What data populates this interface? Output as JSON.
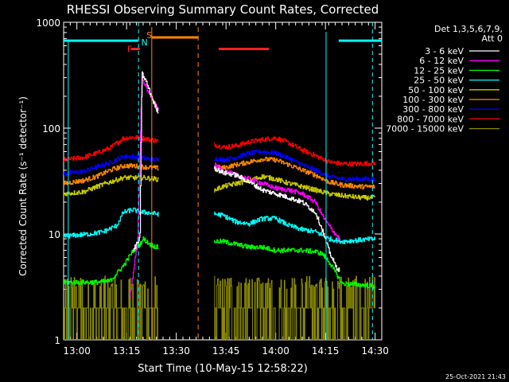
{
  "chart_data": {
    "type": "line",
    "title": "RHESSI Observing Summary Count Rates, Corrected",
    "xlabel": "Start Time (10-May-15 12:58:22)",
    "ylabel": "Corrected Count Rate (s⁻¹ detector⁻¹)",
    "yscale": "log",
    "xlim_minutes": [
      -2,
      46
    ],
    "ylim": [
      1,
      1000
    ],
    "x_ticks": [
      {
        "m": 0,
        "label": "13:00"
      },
      {
        "m": 7.5,
        "label": "13:15"
      },
      {
        "m": 15,
        "label": "13:30"
      },
      {
        "m": 22.5,
        "label": "13:45"
      },
      {
        "m": 30,
        "label": "14:00"
      },
      {
        "m": 37.5,
        "label": "14:15"
      },
      {
        "m": 45,
        "label": "14:30"
      }
    ],
    "y_ticks": [
      {
        "v": 1,
        "label": "1"
      },
      {
        "v": 10,
        "label": "10"
      },
      {
        "v": 100,
        "label": "100"
      },
      {
        "v": 1000,
        "label": "1000"
      }
    ],
    "legend_header": [
      "Det 1,3,5,6,7,9,",
      "Att 0"
    ],
    "timestamp": "25-Oct-2021 21:43",
    "markers": {
      "F": {
        "label": "F",
        "color": "#ff2020",
        "bars": [
          [
            8.2,
            9.5
          ],
          [
            21.4,
            29.0
          ]
        ]
      },
      "N": {
        "label": "N",
        "color": "#00ffff",
        "dashed": [
          9.3,
          44.6
        ],
        "solid": [
          -2,
          9.3,
          39.5,
          46
        ],
        "ybar": 670,
        "edges": [
          9.3,
          37.6
        ]
      },
      "S": {
        "label": "S",
        "color": "#ff8800",
        "solid": [
          11.3,
          18.3
        ],
        "edges": [
          11.3,
          18.3
        ],
        "ybar": 720
      }
    },
    "segments": [
      [
        -2,
        12.3
      ],
      [
        20.7,
        45.0
      ]
    ],
    "series": [
      {
        "name": "3 - 6 keV",
        "color": "#ffffff",
        "pts": [
          [
            8.5,
            7
          ],
          [
            9.0,
            8
          ],
          [
            9.5,
            9
          ],
          [
            9.8,
            330
          ],
          [
            10.5,
            270
          ],
          [
            11.0,
            220
          ],
          [
            11.5,
            180
          ],
          [
            12.0,
            150
          ],
          [
            20.7,
            42
          ],
          [
            22,
            38
          ],
          [
            24,
            36
          ],
          [
            26,
            31
          ],
          [
            28,
            26
          ],
          [
            30,
            24
          ],
          [
            32,
            22
          ],
          [
            34,
            20
          ],
          [
            36,
            16
          ],
          [
            37,
            11
          ],
          [
            38,
            7
          ],
          [
            39,
            5
          ],
          [
            39.6,
            4.5
          ]
        ]
      },
      {
        "name": "6 - 12 keV",
        "color": "#ff00ff",
        "pts": [
          [
            8.0,
            2.5
          ],
          [
            9.2,
            9.5
          ],
          [
            9.8,
            300
          ],
          [
            10.5,
            240
          ],
          [
            11.5,
            180
          ],
          [
            12.0,
            160
          ],
          [
            20.7,
            45
          ],
          [
            22,
            40
          ],
          [
            24,
            36
          ],
          [
            26,
            33
          ],
          [
            28,
            30
          ],
          [
            30,
            27
          ],
          [
            32,
            26
          ],
          [
            34,
            24
          ],
          [
            36,
            20
          ],
          [
            37,
            15
          ],
          [
            38,
            12
          ],
          [
            39,
            10
          ],
          [
            39.6,
            9
          ]
        ]
      },
      {
        "name": "12 - 25 keV",
        "color": "#00ff00",
        "pts": [
          [
            -2,
            3.5
          ],
          [
            1,
            3.5
          ],
          [
            3,
            3.5
          ],
          [
            5,
            3.6
          ],
          [
            7,
            5
          ],
          [
            8.5,
            7
          ],
          [
            9.5,
            8
          ],
          [
            10,
            9
          ],
          [
            11,
            8
          ],
          [
            12,
            7.5
          ],
          [
            20.7,
            8.5
          ],
          [
            22,
            8.5
          ],
          [
            24,
            8
          ],
          [
            26,
            7.5
          ],
          [
            28,
            7.5
          ],
          [
            30,
            7
          ],
          [
            32,
            7
          ],
          [
            34,
            7
          ],
          [
            36,
            6.8
          ],
          [
            37,
            6.5
          ],
          [
            38,
            5.5
          ],
          [
            40,
            3.4
          ],
          [
            43,
            3.3
          ],
          [
            45,
            3.2
          ]
        ]
      },
      {
        "name": "25 - 50 keV",
        "color": "#00ffff",
        "pts": [
          [
            -2,
            9.5
          ],
          [
            2,
            10
          ],
          [
            4,
            10.5
          ],
          [
            6,
            12
          ],
          [
            7,
            16
          ],
          [
            8.5,
            17
          ],
          [
            9.5,
            16
          ],
          [
            10.5,
            16
          ],
          [
            12,
            15.5
          ],
          [
            20.7,
            15.5
          ],
          [
            22,
            15
          ],
          [
            24,
            13
          ],
          [
            26,
            12.5
          ],
          [
            28,
            14
          ],
          [
            30,
            14
          ],
          [
            32,
            12
          ],
          [
            34,
            11
          ],
          [
            36,
            10.5
          ],
          [
            38,
            9
          ],
          [
            40,
            8.5
          ],
          [
            43,
            8.8
          ],
          [
            45,
            9
          ]
        ]
      },
      {
        "name": "50 - 100 keV",
        "color": "#cccc00",
        "pts": [
          [
            -2,
            24
          ],
          [
            1,
            25
          ],
          [
            3,
            28
          ],
          [
            5,
            31
          ],
          [
            7,
            34
          ],
          [
            8.5,
            34
          ],
          [
            10,
            34
          ],
          [
            12,
            33
          ],
          [
            20.7,
            26
          ],
          [
            22,
            28
          ],
          [
            24,
            30
          ],
          [
            26,
            32
          ],
          [
            28,
            35
          ],
          [
            30,
            33
          ],
          [
            32,
            30
          ],
          [
            34,
            28
          ],
          [
            36,
            26
          ],
          [
            38,
            24
          ],
          [
            40,
            23
          ],
          [
            43,
            22
          ],
          [
            45,
            22
          ]
        ]
      },
      {
        "name": "100 - 300 keV",
        "color": "#ff8800",
        "pts": [
          [
            -2,
            30
          ],
          [
            1,
            32
          ],
          [
            3,
            35
          ],
          [
            5,
            40
          ],
          [
            7,
            44
          ],
          [
            8.5,
            44
          ],
          [
            10,
            43
          ],
          [
            12,
            42
          ],
          [
            20.7,
            43
          ],
          [
            22,
            42
          ],
          [
            24,
            45
          ],
          [
            26,
            48
          ],
          [
            28,
            51
          ],
          [
            30,
            50
          ],
          [
            32,
            45
          ],
          [
            34,
            40
          ],
          [
            36,
            36
          ],
          [
            38,
            31
          ],
          [
            40,
            29
          ],
          [
            43,
            28
          ],
          [
            45,
            28
          ]
        ]
      },
      {
        "name": "300 - 800 keV",
        "color": "#0000ff",
        "pts": [
          [
            -2,
            37
          ],
          [
            1,
            39
          ],
          [
            3,
            43
          ],
          [
            5,
            47
          ],
          [
            7,
            54
          ],
          [
            8.5,
            54
          ],
          [
            10,
            52
          ],
          [
            12,
            50
          ],
          [
            20.7,
            52
          ],
          [
            22,
            50
          ],
          [
            24,
            53
          ],
          [
            26,
            58
          ],
          [
            28,
            60
          ],
          [
            30,
            58
          ],
          [
            32,
            52
          ],
          [
            34,
            45
          ],
          [
            36,
            40
          ],
          [
            38,
            35
          ],
          [
            40,
            33
          ],
          [
            43,
            33
          ],
          [
            45,
            33
          ]
        ]
      },
      {
        "name": "800 - 7000 keV",
        "color": "#ff0000",
        "pts": [
          [
            -2,
            50
          ],
          [
            1,
            53
          ],
          [
            3,
            58
          ],
          [
            5,
            65
          ],
          [
            7,
            80
          ],
          [
            8.5,
            82
          ],
          [
            10,
            80
          ],
          [
            12,
            76
          ],
          [
            20.7,
            70
          ],
          [
            22,
            66
          ],
          [
            24,
            68
          ],
          [
            26,
            74
          ],
          [
            28,
            78
          ],
          [
            30,
            81
          ],
          [
            32,
            72
          ],
          [
            34,
            62
          ],
          [
            36,
            55
          ],
          [
            38,
            48
          ],
          [
            40,
            46
          ],
          [
            43,
            46
          ],
          [
            45,
            47
          ]
        ]
      },
      {
        "name": "7000 - 15000 keV",
        "color": "#8b8b00",
        "pts": [
          [
            -2,
            1.6
          ],
          [
            2,
            1.8
          ],
          [
            4,
            2.2
          ],
          [
            6,
            2.4
          ],
          [
            8,
            2.2
          ],
          [
            10,
            2.0
          ],
          [
            12,
            2.1
          ],
          [
            20.7,
            1.9
          ],
          [
            22,
            2.3
          ],
          [
            24,
            2.1
          ],
          [
            26,
            2.4
          ],
          [
            28,
            2.3
          ],
          [
            30,
            2.6
          ],
          [
            32,
            2.2
          ],
          [
            34,
            2.4
          ],
          [
            36,
            2.3
          ],
          [
            38,
            2.0
          ],
          [
            40,
            2.2
          ],
          [
            43,
            2.3
          ],
          [
            45,
            2.2
          ]
        ]
      }
    ]
  }
}
